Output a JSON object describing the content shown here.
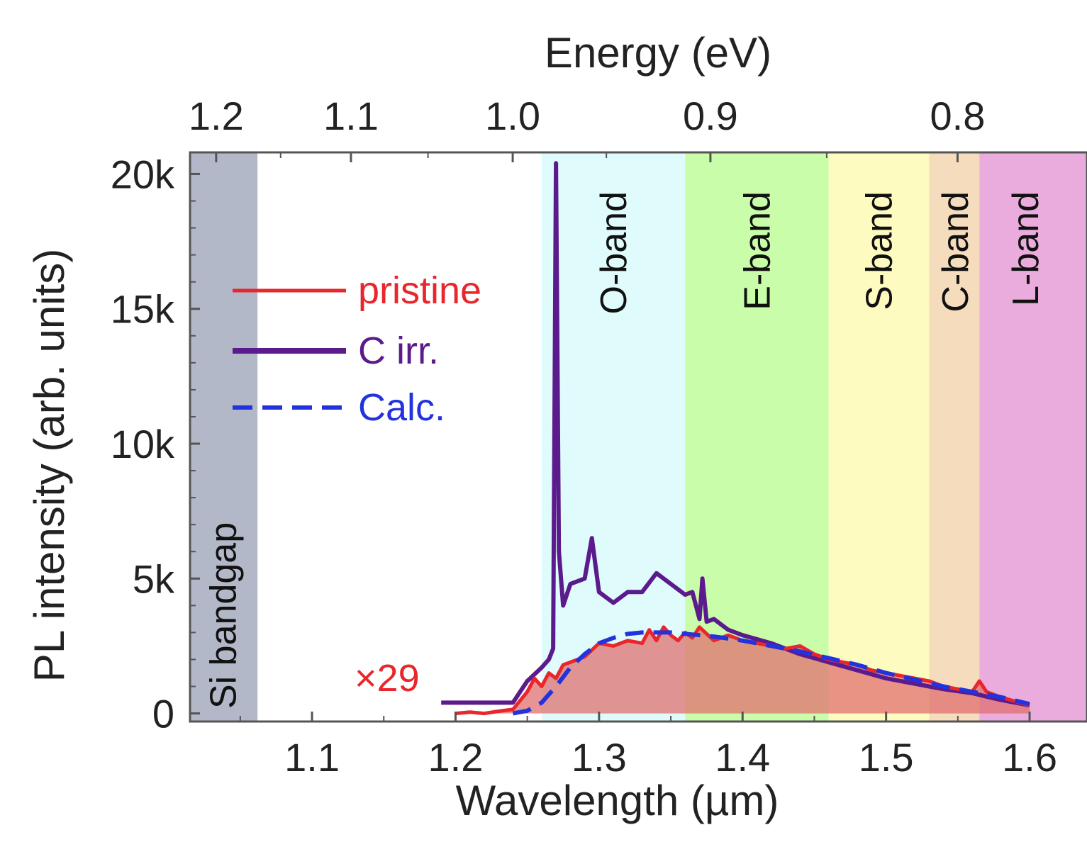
{
  "chart_data": {
    "type": "line",
    "xlabel": "Wavelength (µm)",
    "x2label": "Energy (eV)",
    "ylabel": "PL intensity (arb. units)",
    "xlim": [
      1.015,
      1.64
    ],
    "ylim": [
      -300,
      20800
    ],
    "x_ticks": [
      {
        "v": 1.1,
        "label": "1.1"
      },
      {
        "v": 1.2,
        "label": "1.2"
      },
      {
        "v": 1.3,
        "label": "1.3"
      },
      {
        "v": 1.4,
        "label": "1.4"
      },
      {
        "v": 1.5,
        "label": "1.5"
      },
      {
        "v": 1.6,
        "label": "1.6"
      }
    ],
    "x2_ticks": [
      {
        "v": 1.2,
        "label": "1.2"
      },
      {
        "v": 1.1,
        "label": "1.1"
      },
      {
        "v": 1.0,
        "label": "1.0"
      },
      {
        "v": 0.9,
        "label": "0.9"
      },
      {
        "v": 0.8,
        "label": "0.8"
      }
    ],
    "y_ticks": [
      {
        "v": 0,
        "label": "0"
      },
      {
        "v": 5000,
        "label": "5k"
      },
      {
        "v": 10000,
        "label": "10k"
      },
      {
        "v": 15000,
        "label": "15k"
      },
      {
        "v": 20000,
        "label": "20k"
      }
    ],
    "bands": [
      {
        "label": "Si bandgap",
        "x0": 1.015,
        "x1": 1.062,
        "color": "#b3b8c8"
      },
      {
        "label": "O-band",
        "x0": 1.26,
        "x1": 1.36,
        "color": "#e0fbfc"
      },
      {
        "label": "E-band",
        "x0": 1.36,
        "x1": 1.46,
        "color": "#c9fda9"
      },
      {
        "label": "S-band",
        "x0": 1.46,
        "x1": 1.53,
        "color": "#fdfbc0"
      },
      {
        "label": "C-band",
        "x0": 1.53,
        "x1": 1.565,
        "color": "#f5dcbc"
      },
      {
        "label": "L-band",
        "x0": 1.565,
        "x1": 1.64,
        "color": "#e9acdd"
      }
    ],
    "series": [
      {
        "name": "pristine",
        "color": "#e8262b",
        "annotation": "×29",
        "x": [
          1.2,
          1.21,
          1.22,
          1.23,
          1.24,
          1.25,
          1.255,
          1.26,
          1.265,
          1.27,
          1.275,
          1.28,
          1.29,
          1.3,
          1.31,
          1.32,
          1.33,
          1.335,
          1.34,
          1.345,
          1.35,
          1.355,
          1.36,
          1.365,
          1.37,
          1.38,
          1.39,
          1.4,
          1.41,
          1.42,
          1.43,
          1.44,
          1.45,
          1.46,
          1.47,
          1.48,
          1.49,
          1.5,
          1.51,
          1.52,
          1.53,
          1.54,
          1.55,
          1.56,
          1.565,
          1.57,
          1.58,
          1.59,
          1.6
        ],
        "y": [
          0,
          50,
          0,
          80,
          150,
          800,
          1300,
          1000,
          1500,
          1300,
          1800,
          1900,
          2100,
          2600,
          2500,
          2700,
          2600,
          3100,
          2700,
          3200,
          2900,
          2700,
          3000,
          2800,
          3200,
          2700,
          2900,
          2700,
          2600,
          2500,
          2400,
          2500,
          2200,
          2000,
          1900,
          1800,
          1600,
          1500,
          1400,
          1300,
          1200,
          1000,
          900,
          800,
          1200,
          800,
          600,
          450,
          300
        ]
      },
      {
        "name": "C irr.",
        "color": "#5b1b8c",
        "x": [
          1.19,
          1.2,
          1.22,
          1.24,
          1.25,
          1.26,
          1.265,
          1.268,
          1.27,
          1.272,
          1.275,
          1.28,
          1.29,
          1.295,
          1.3,
          1.31,
          1.32,
          1.33,
          1.34,
          1.35,
          1.36,
          1.365,
          1.37,
          1.372,
          1.375,
          1.38,
          1.39,
          1.4,
          1.42,
          1.44,
          1.46,
          1.48,
          1.5,
          1.52,
          1.54,
          1.56,
          1.58,
          1.6
        ],
        "y": [
          400,
          400,
          400,
          400,
          1200,
          1700,
          2000,
          2400,
          20400,
          6000,
          4000,
          4800,
          5000,
          6500,
          4500,
          4100,
          4500,
          4500,
          5200,
          4800,
          4400,
          4500,
          3500,
          5000,
          3400,
          3500,
          3100,
          2900,
          2600,
          2200,
          1900,
          1600,
          1300,
          1100,
          900,
          750,
          500,
          300
        ]
      },
      {
        "name": "Calc.",
        "color": "#2233dd",
        "style": "dashed",
        "x": [
          1.24,
          1.25,
          1.26,
          1.27,
          1.28,
          1.29,
          1.3,
          1.31,
          1.32,
          1.33,
          1.34,
          1.35,
          1.36,
          1.37,
          1.38,
          1.4,
          1.42,
          1.44,
          1.46,
          1.48,
          1.5,
          1.52,
          1.54,
          1.56,
          1.58,
          1.6
        ],
        "y": [
          0,
          100,
          400,
          1000,
          1700,
          2200,
          2600,
          2800,
          2950,
          3000,
          3000,
          3000,
          2950,
          2900,
          2850,
          2700,
          2500,
          2300,
          2050,
          1800,
          1500,
          1250,
          1000,
          800,
          600,
          350
        ]
      }
    ]
  }
}
